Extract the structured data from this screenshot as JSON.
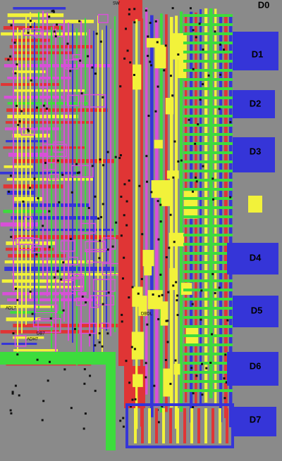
{
  "pads": [
    "D0",
    "D1",
    "D2",
    "D3",
    "D4",
    "D5",
    "D6",
    "D7"
  ],
  "signal_labels": [
    "SW",
    "ADL7",
    "DB7",
    "ADH7",
    "DBDL"
  ]
}
